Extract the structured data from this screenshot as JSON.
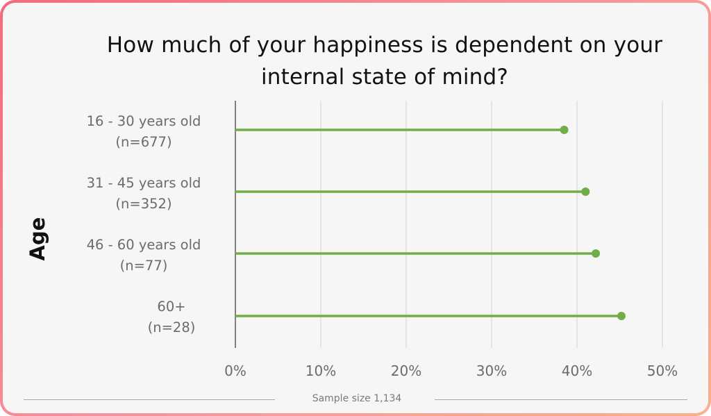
{
  "title": "How much of your happiness is dependent on your internal state of mind?",
  "footer": "Sample size 1,134",
  "colors": {
    "series": "#70ad47",
    "grid": "#d9d9d9",
    "axis": "#595959"
  },
  "chart_data": {
    "type": "lollipop",
    "title": "How much of your happiness is dependent on your internal state of mind?",
    "ylabel": "Age",
    "xlabel": "",
    "categories": [
      {
        "line1": "16 - 30 years old",
        "line2": "(n=677)"
      },
      {
        "line1": "31 - 45 years old",
        "line2": "(n=352)"
      },
      {
        "line1": "46 - 60 years old",
        "line2": "(n=77)"
      },
      {
        "line1": "60+",
        "line2": "(n=28)"
      }
    ],
    "values": [
      38.5,
      41,
      42.2,
      45.2
    ],
    "xlim": [
      0,
      50
    ],
    "xticks": [
      "0%",
      "10%",
      "20%",
      "30%",
      "40%",
      "50%"
    ],
    "grid": true
  }
}
